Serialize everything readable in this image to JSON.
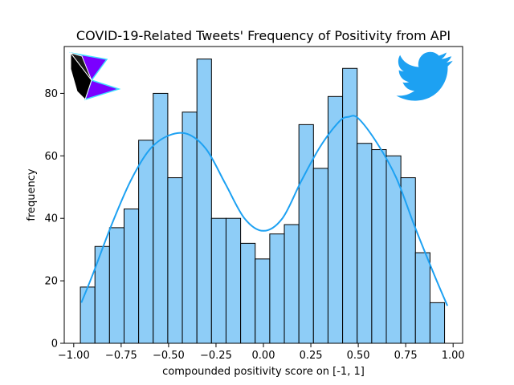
{
  "chart_data": {
    "type": "bar",
    "title": "COVID-19-Related Tweets' Frequency of Positivity from API",
    "xlabel": "compounded positivity score on [-1, 1]",
    "ylabel": "frequency",
    "xlim": [
      -1.05,
      1.05
    ],
    "ylim": [
      0,
      95
    ],
    "xticks": [
      -1.0,
      -0.75,
      -0.5,
      -0.25,
      0.0,
      0.25,
      0.5,
      0.75,
      1.0
    ],
    "xtick_labels": [
      "−1.00",
      "−0.75",
      "−0.50",
      "−0.25",
      "0.00",
      "0.25",
      "0.50",
      "0.75",
      "1.00"
    ],
    "yticks": [
      0,
      20,
      40,
      60,
      80
    ],
    "ytick_labels": [
      "0",
      "20",
      "40",
      "60",
      "80"
    ],
    "bin_start": -0.965,
    "bin_width": 0.0768,
    "values": [
      18,
      31,
      37,
      43,
      65,
      80,
      53,
      74,
      91,
      40,
      40,
      32,
      27,
      35,
      38,
      70,
      56,
      79,
      88,
      64,
      62,
      60,
      53,
      29,
      13
    ],
    "kde": {
      "x": [
        -0.96,
        -0.9,
        -0.8,
        -0.7,
        -0.6,
        -0.5,
        -0.4,
        -0.3,
        -0.2,
        -0.1,
        0.0,
        0.1,
        0.2,
        0.3,
        0.4,
        0.45,
        0.5,
        0.6,
        0.7,
        0.8,
        0.9,
        0.97
      ],
      "y": [
        13,
        22,
        38,
        52,
        62,
        66.5,
        67,
        62,
        51,
        40,
        36,
        40,
        52,
        63,
        71,
        72.5,
        72,
        64,
        53,
        37,
        22,
        12
      ]
    },
    "colors": {
      "bar_fill": "#8ecdf7",
      "bar_edge": "#000000",
      "kde_line": "#1da1f2"
    },
    "grid": false,
    "logos": [
      "feather-logo",
      "twitter-bird-logo"
    ]
  }
}
